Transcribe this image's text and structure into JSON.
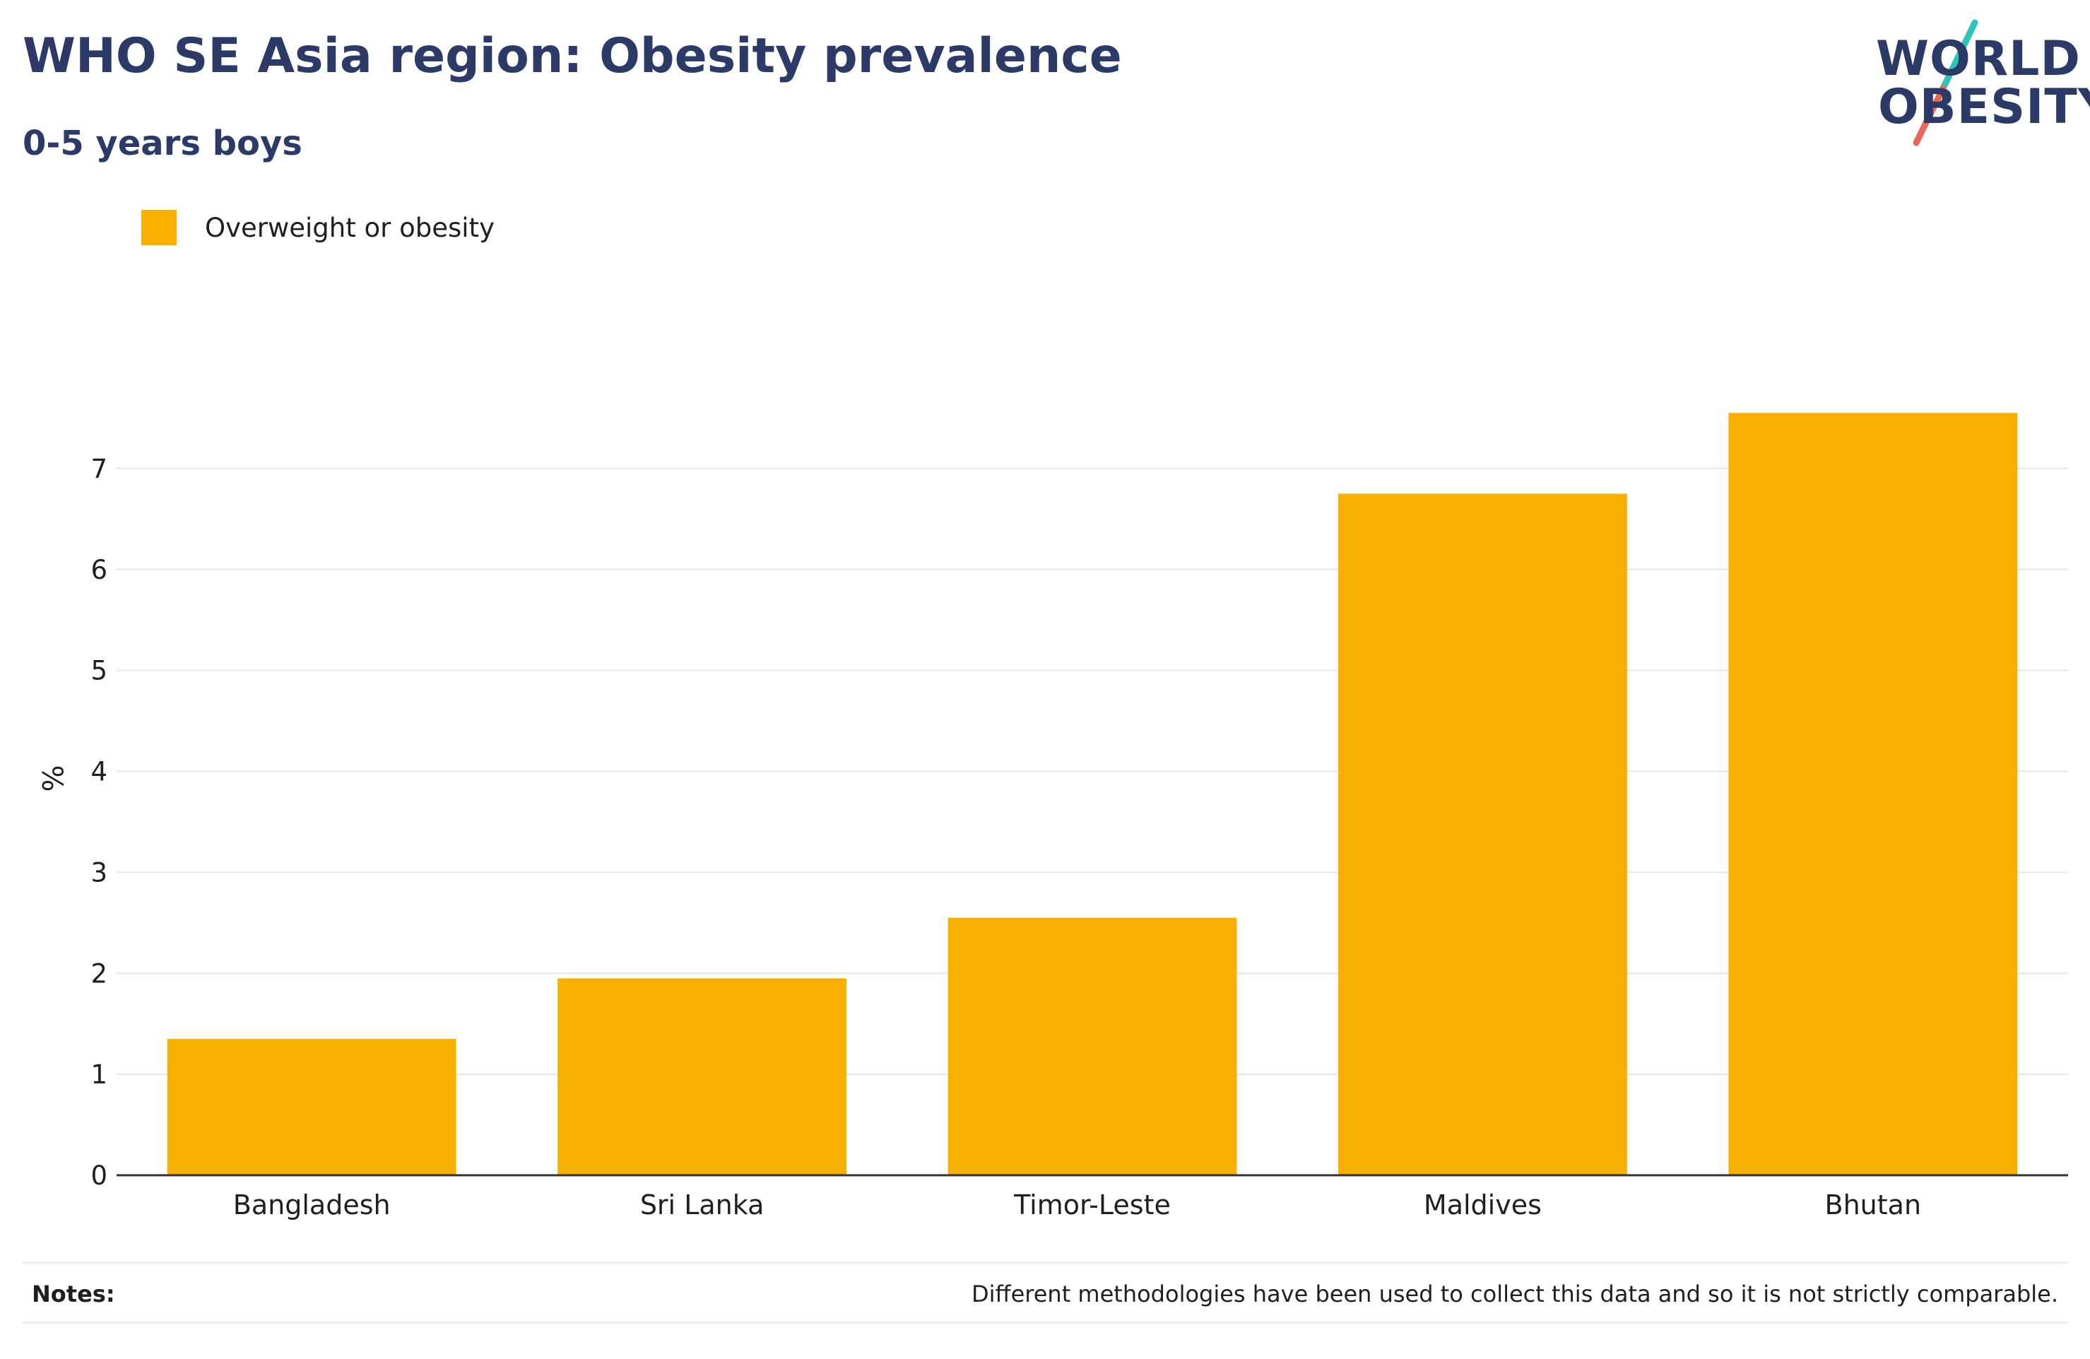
{
  "header": {
    "title": "WHO SE Asia region: Obesity prevalence",
    "subtitle": "0-5 years boys"
  },
  "logo": {
    "line1": "WORLD",
    "line2": "OBESITY",
    "colors": {
      "text": "#2b3a67",
      "slash_top": "#2ec4b6",
      "slash_bottom": "#e8665a"
    }
  },
  "notes": {
    "label": "Notes:",
    "text": "Different methodologies have been used to collect this data and so it is not strictly comparable."
  },
  "chart_data": {
    "type": "bar",
    "categories": [
      "Bangladesh",
      "Sri Lanka",
      "Timor-Leste",
      "Maldives",
      "Bhutan"
    ],
    "series": [
      {
        "name": "Overweight or obesity",
        "values": [
          1.35,
          1.95,
          2.55,
          6.75,
          7.55
        ],
        "color": "#f7b000"
      }
    ],
    "ylabel": "%",
    "ylim": [
      0,
      8
    ],
    "yticks": [
      0,
      1,
      2,
      3,
      4,
      5,
      6,
      7
    ],
    "grid": true,
    "legend_position": "top-left"
  }
}
